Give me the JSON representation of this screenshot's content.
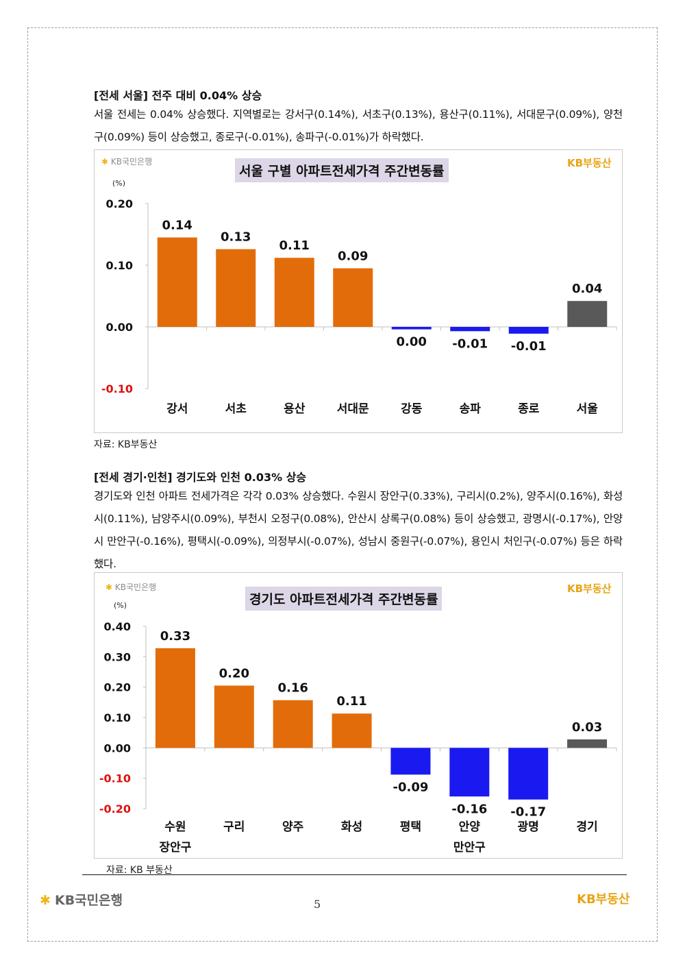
{
  "section1": {
    "heading": "[전세 서울] 전주 대비 0.04% 상승",
    "paragraph": "서울 전세는 0.04% 상승했다. 지역별로는 강서구(0.14%), 서초구(0.13%), 용산구(0.11%), 서대문구(0.09%), 양천구(0.09%) 등이 상승했고, 종로구(-0.01%), 송파구(-0.01%)가 하락했다.",
    "chart_bank_logo": "KB국민은행",
    "chart_brand_logo": "KB부동산",
    "source": "자료: KB부동산"
  },
  "section2": {
    "heading": "[전세 경기·인천] 경기도와 인천 0.03% 상승",
    "paragraph": "경기도와 인천 아파트 전세가격은 각각 0.03% 상승했다. 수원시 장안구(0.33%), 구리시(0.2%), 양주시(0.16%), 화성시(0.11%), 남양주시(0.09%), 부천시 오정구(0.08%), 안산시 상록구(0.08%) 등이 상승했고, 광명시(-0.17%), 안양시 만안구(-0.16%), 평택시(-0.09%), 의정부시(-0.07%), 성남시 중원구(-0.07%), 용인시 처인구(-0.07%) 등은 하락했다.",
    "chart_bank_logo": "KB국민은행",
    "chart_brand_logo": "KB부동산",
    "source": "자료: KB 부동산"
  },
  "footer": {
    "bank_logo": "KB국민은행",
    "brand_logo": "KB부동산",
    "page_number": "5"
  },
  "colors": {
    "rise": "#e36c0a",
    "fall": "#1a1af0",
    "total": "#595959",
    "negative_tick": "#e01010",
    "title_bg": "#dcd6e6"
  },
  "chart_data": [
    {
      "type": "bar",
      "title": "서울 구별 아파트전세가격 주간변동률",
      "ylabel": "(%)",
      "ylim": [
        -0.1,
        0.2
      ],
      "yticks": [
        0.2,
        0.1,
        0.0,
        -0.1
      ],
      "ytick_labels": [
        "0.20",
        "0.10",
        "0.00",
        "-0.10"
      ],
      "categories": [
        [
          "강서"
        ],
        [
          "서초"
        ],
        [
          "용산"
        ],
        [
          "서대문"
        ],
        [
          "강동"
        ],
        [
          "송파"
        ],
        [
          "종로"
        ],
        [
          "서울"
        ]
      ],
      "values": [
        0.145,
        0.126,
        0.112,
        0.095,
        -0.004,
        -0.007,
        -0.011,
        0.042
      ],
      "labels": [
        "0.14",
        "0.13",
        "0.11",
        "0.09",
        "0.00",
        "-0.01",
        "-0.01",
        "0.04"
      ],
      "bar_kinds": [
        "rise",
        "rise",
        "rise",
        "rise",
        "fall",
        "fall",
        "fall",
        "total"
      ]
    },
    {
      "type": "bar",
      "title": "경기도 아파트전세가격 주간변동률",
      "ylabel": "(%)",
      "ylim": [
        -0.2,
        0.4
      ],
      "yticks": [
        0.4,
        0.3,
        0.2,
        0.1,
        0.0,
        -0.1,
        -0.2
      ],
      "ytick_labels": [
        "0.40",
        "0.30",
        "0.20",
        "0.10",
        "0.00",
        "-0.10",
        "-0.20"
      ],
      "categories": [
        [
          "수원",
          "장안구"
        ],
        [
          "구리"
        ],
        [
          "양주"
        ],
        [
          "화성"
        ],
        [
          "평택"
        ],
        [
          "안양",
          "만안구"
        ],
        [
          "광명"
        ],
        [
          "경기"
        ]
      ],
      "values": [
        0.328,
        0.205,
        0.157,
        0.113,
        -0.088,
        -0.16,
        -0.17,
        0.028
      ],
      "labels": [
        "0.33",
        "0.20",
        "0.16",
        "0.11",
        "-0.09",
        "-0.16",
        "-0.17",
        "0.03"
      ],
      "bar_kinds": [
        "rise",
        "rise",
        "rise",
        "rise",
        "fall",
        "fall",
        "fall",
        "total"
      ]
    }
  ]
}
